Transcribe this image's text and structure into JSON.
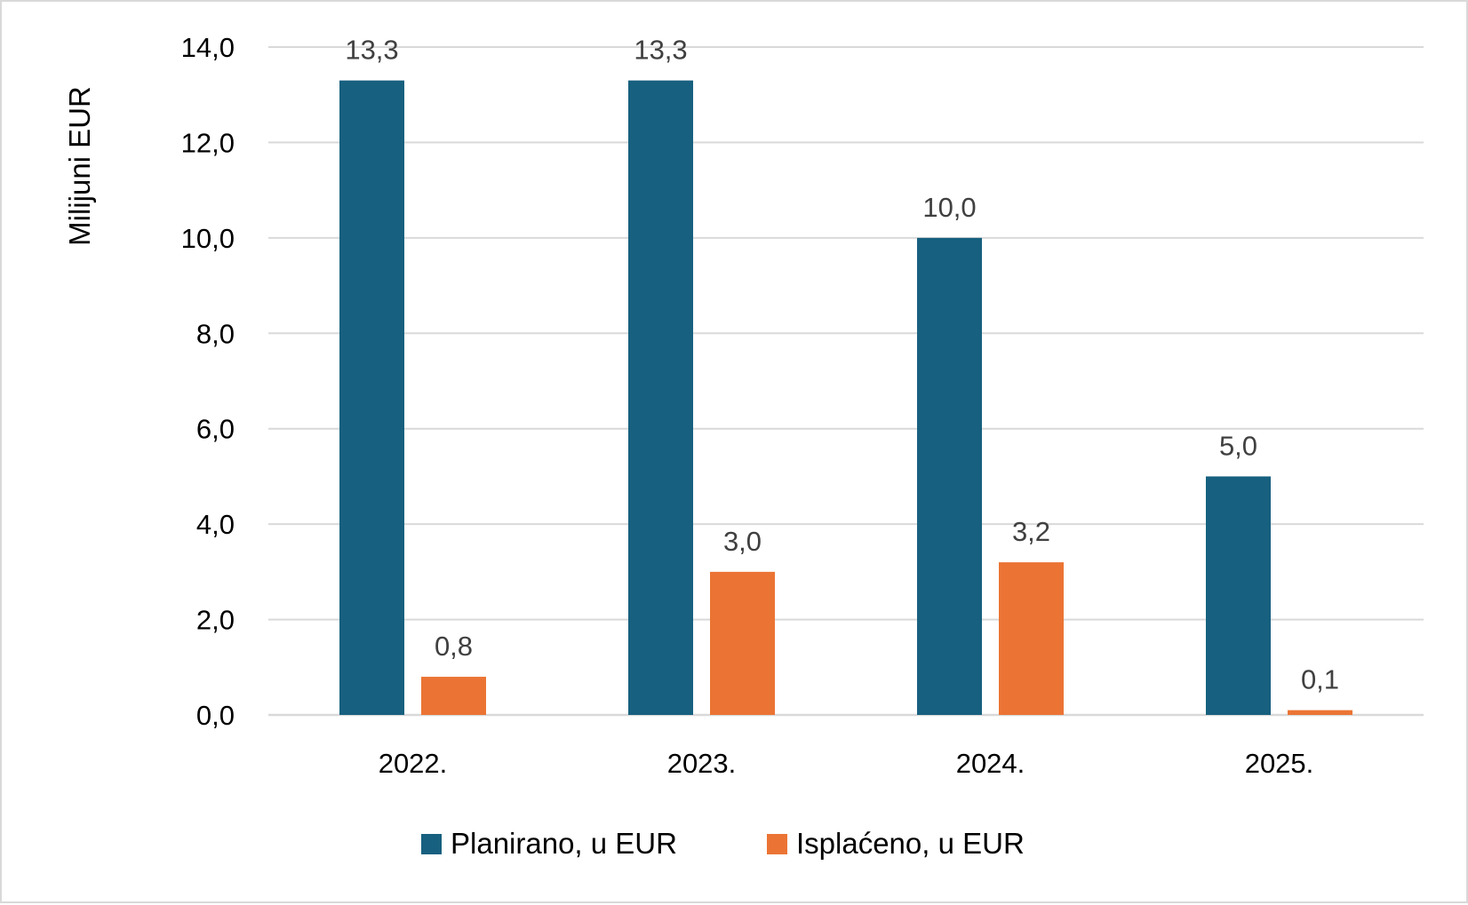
{
  "chart_data": {
    "type": "bar",
    "title": "",
    "xlabel": "",
    "ylabel": "Milijuni EUR",
    "categories": [
      "2022.",
      "2023.",
      "2024.",
      "2025."
    ],
    "series": [
      {
        "name": "Planirano, u EUR",
        "color": "#17607f",
        "values": [
          13.3,
          13.3,
          10.0,
          5.0
        ],
        "labels": [
          "13,3",
          "13,3",
          "10,0",
          "5,0"
        ]
      },
      {
        "name": "Isplaćeno, u EUR",
        "color": "#eb7434",
        "values": [
          0.8,
          3.0,
          3.2,
          0.1
        ],
        "labels": [
          "0,8",
          "3,0",
          "3,2",
          "0,1"
        ]
      }
    ],
    "ylim": [
      0,
      14
    ],
    "yticks": [
      0,
      2,
      4,
      6,
      8,
      10,
      12,
      14
    ],
    "ytick_labels": [
      "0,0",
      "2,0",
      "4,0",
      "6,0",
      "8,0",
      "10,0",
      "12,0",
      "14,0"
    ],
    "grid": true,
    "gridline_color": "#d9d9d9",
    "legend_position": "bottom"
  }
}
